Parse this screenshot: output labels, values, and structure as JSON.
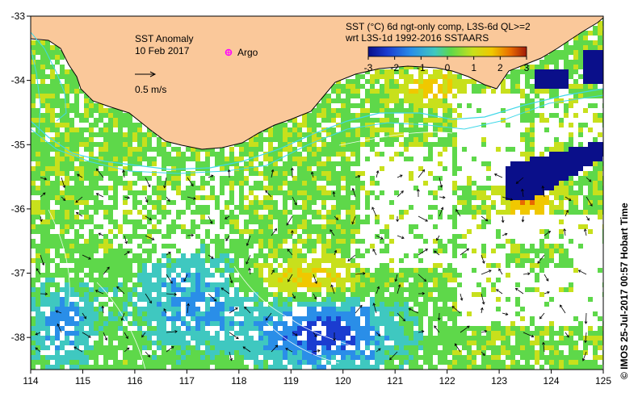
{
  "map": {
    "title": "SST Anomaly",
    "date": "10 Feb 2017",
    "scale_label": "0.5 m/s",
    "argo_label": "Argo",
    "product_line1": "SST (°C) 6d ngt-only comp, L3S-6d QL>=2",
    "product_line2": "wrt L3S-1d 1992-2016 SSTAARS",
    "colorbar_ticks": [
      "-3",
      "-2",
      "-1",
      "0",
      "1",
      "2",
      "3"
    ],
    "colorbar_range": [
      -3,
      3
    ],
    "x_ticks": [
      "114",
      "115",
      "116",
      "117",
      "118",
      "119",
      "120",
      "121",
      "122",
      "123",
      "124",
      "125"
    ],
    "y_ticks": [
      "-33",
      "-34",
      "-35",
      "-36",
      "-37",
      "-38"
    ],
    "lon_range": [
      114,
      125
    ],
    "lat_range": [
      -38.5,
      -33
    ],
    "credit": "© IMOS 25-Jul-2017 00:57 Hobart Time",
    "colors": {
      "land": "#fac89a",
      "coast": "#000000",
      "contour_cyan": "#40d8e8",
      "argo": "#ff00ff",
      "colormap": [
        "#0a0f8a",
        "#1b3cd0",
        "#2a8ee8",
        "#3fc8c0",
        "#5ed84a",
        "#c8e01c",
        "#f0c800",
        "#e86a00",
        "#a01a0a"
      ]
    }
  }
}
